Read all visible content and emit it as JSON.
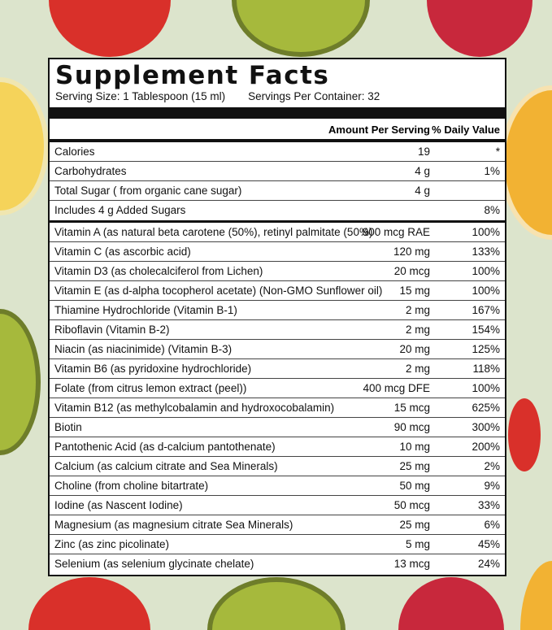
{
  "title": "Supplement Facts",
  "serving_size": "Serving Size: 1 Tablespoon (15 ml)",
  "servings_per_container": "Servings Per Container: 32",
  "header": {
    "amount": "Amount Per Serving",
    "daily_value": "% Daily Value"
  },
  "top_rows": [
    {
      "name": "Calories",
      "amount": "19",
      "dv": "*"
    },
    {
      "name": "Carbohydrates",
      "amount": "4 g",
      "dv": "1%"
    },
    {
      "name": "Total Sugar ( from organic cane sugar)",
      "amount": "4 g",
      "dv": ""
    },
    {
      "name": " Includes 4 g Added Sugars",
      "amount": "",
      "dv": "8%"
    }
  ],
  "nutrients": [
    {
      "name": "Vitamin A (as natural beta carotene (50%), retinyl palmitate (50%)",
      "amount": "900 mcg RAE",
      "dv": "100%"
    },
    {
      "name": "Vitamin C (as ascorbic acid)",
      "amount": "120 mg",
      "dv": "133%"
    },
    {
      "name": "Vitamin D3 (as cholecalciferol from Lichen)",
      "amount": "20 mcg",
      "dv": "100%"
    },
    {
      "name": "Vitamin E (as d-alpha tocopherol acetate) (Non-GMO Sunflower oil)",
      "amount": "15 mg",
      "dv": "100%"
    },
    {
      "name": "Thiamine Hydrochloride (Vitamin B-1)",
      "amount": "2 mg",
      "dv": "167%"
    },
    {
      "name": "Riboflavin (Vitamin B-2)",
      "amount": "2 mg",
      "dv": "154%"
    },
    {
      "name": "Niacin (as niacinimide) (Vitamin B-3)",
      "amount": "20 mg",
      "dv": "125%"
    },
    {
      "name": "Vitamin B6 (as pyridoxine hydrochloride)",
      "amount": "2 mg",
      "dv": "118%"
    },
    {
      "name": "Folate (from citrus lemon extract (peel))",
      "amount": "400 mcg DFE",
      "dv": "100%"
    },
    {
      "name": "Vitamin B12 (as methylcobalamin and hydroxocobalamin)",
      "amount": "15 mcg",
      "dv": "625%"
    },
    {
      "name": "Biotin",
      "amount": "90 mcg",
      "dv": "300%"
    },
    {
      "name": "Pantothenic Acid (as d-calcium pantothenate)",
      "amount": "10 mg",
      "dv": "200%"
    },
    {
      "name": "Calcium (as calcium citrate and Sea Minerals)",
      "amount": "25 mg",
      "dv": "2%"
    },
    {
      "name": "Choline (from choline bitartrate)",
      "amount": "50 mg",
      "dv": "9%"
    },
    {
      "name": "Iodine (as Nascent Iodine)",
      "amount": "50 mcg",
      "dv": "33%"
    },
    {
      "name": "Magnesium (as magnesium citrate Sea Minerals)",
      "amount": "25 mg",
      "dv": "6%"
    },
    {
      "name": "Zinc (as zinc picolinate)",
      "amount": "5 mg",
      "dv": "45%"
    },
    {
      "name": "Selenium (as selenium glycinate chelate)",
      "amount": "13 mcg",
      "dv": "24%"
    }
  ],
  "colors": {
    "background": "#dce4cc",
    "strawberry": "#d9302a",
    "kiwi": "#a6b93c",
    "orange": "#f2b233",
    "raspberry": "#c8283c"
  }
}
